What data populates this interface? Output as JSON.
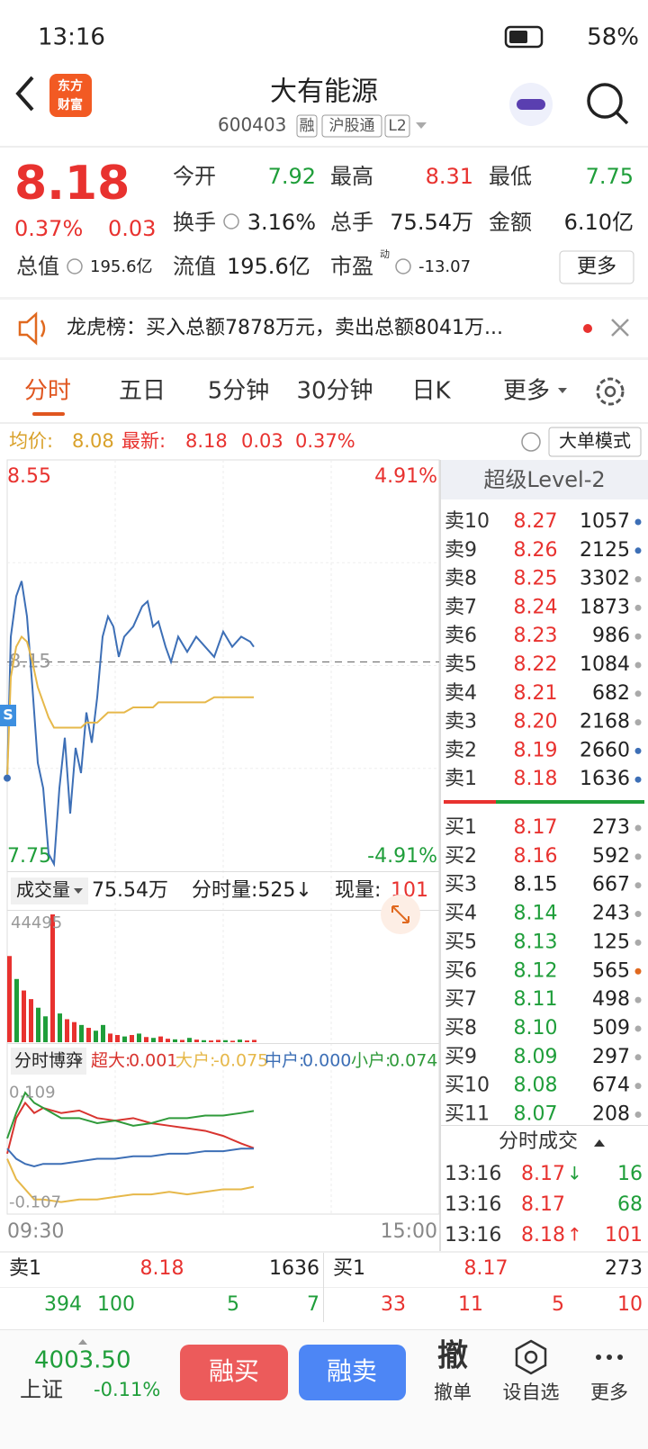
{
  "status_bar": {
    "time": "13:16",
    "battery": "58%"
  },
  "header": {
    "logo": [
      "东方",
      "财富"
    ],
    "title": "大有能源",
    "code": "600403",
    "tags": [
      "融",
      "沪股通",
      "L2"
    ]
  },
  "quote": {
    "price": "8.18",
    "change_pct": "0.37%",
    "change": "0.03",
    "stats": [
      {
        "label": "今开",
        "value": "7.92",
        "color": "#1f9e3a"
      },
      {
        "label": "最高",
        "value": "8.31",
        "color": "#e8322f"
      },
      {
        "label": "最低",
        "value": "7.75",
        "color": "#1f9e3a"
      },
      {
        "label": "换手",
        "value": "3.16%"
      },
      {
        "label": "总手",
        "value": "75.54万"
      },
      {
        "label": "金额",
        "value": "6.10亿"
      },
      {
        "label": "总值",
        "value": "195.6亿"
      },
      {
        "label": "流值",
        "value": "195.6亿"
      },
      {
        "label": "市盈",
        "value": "-13.07",
        "sup": "动"
      }
    ],
    "more": "更多"
  },
  "notice": "龙虎榜：买入总额7878万元，卖出总额8041万...",
  "tabs": [
    "分时",
    "五日",
    "5分钟",
    "30分钟",
    "日K",
    "更多"
  ],
  "info_bar": {
    "avg_label": "均价:",
    "avg": "8.08",
    "last_label": "最新:",
    "last": "8.18",
    "change": "0.03",
    "change_pct": "0.37%",
    "mode": "大单模式"
  },
  "price_chart": {
    "type": "line",
    "marker": "S",
    "x": [
      0,
      2,
      5,
      8,
      11,
      14,
      17,
      20,
      23,
      26,
      29,
      32,
      35,
      38,
      41,
      44,
      47,
      50,
      53,
      56,
      59,
      62,
      65,
      70,
      75,
      78,
      81,
      84,
      88,
      91,
      95,
      100,
      105,
      110,
      115,
      120,
      125,
      130,
      135,
      137
    ],
    "series": [
      {
        "color": "#3d6fb6",
        "values": [
          7.92,
          8.2,
          8.28,
          8.31,
          8.24,
          8.1,
          7.95,
          7.9,
          7.77,
          7.75,
          7.9,
          8.0,
          7.85,
          7.98,
          7.93,
          8.05,
          7.99,
          8.08,
          8.2,
          8.24,
          8.22,
          8.16,
          8.2,
          8.22,
          8.26,
          8.27,
          8.22,
          8.23,
          8.18,
          8.15,
          8.2,
          8.17,
          8.2,
          8.18,
          8.16,
          8.21,
          8.18,
          8.2,
          8.19,
          8.18
        ]
      },
      {
        "color": "#e6b84a",
        "values": [
          7.92,
          8.12,
          8.18,
          8.2,
          8.19,
          8.15,
          8.1,
          8.07,
          8.04,
          8.02,
          8.02,
          8.02,
          8.02,
          8.02,
          8.02,
          8.03,
          8.03,
          8.03,
          8.04,
          8.05,
          8.05,
          8.05,
          8.05,
          8.06,
          8.06,
          8.06,
          8.06,
          8.07,
          8.07,
          8.07,
          8.07,
          8.07,
          8.07,
          8.07,
          8.08,
          8.08,
          8.08,
          8.08,
          8.08,
          8.08
        ]
      }
    ],
    "xlim": [
      0,
      240
    ],
    "xticks": [
      {
        "value": 0,
        "label": "09:30"
      },
      {
        "value": 240,
        "label": "15:00"
      }
    ],
    "ylim": [
      7.75,
      8.55
    ],
    "yticks": [
      8.55,
      7.75
    ],
    "pct_labels": [
      "4.91%",
      "-4.91%"
    ],
    "ref": 8.15
  },
  "volume_chart": {
    "type": "bar",
    "label": "成交量",
    "total": "75.54万",
    "tick_volume": "分时量:525↓",
    "current_label": "现量:",
    "current": "101",
    "x": [
      0,
      4,
      8,
      12,
      16,
      20,
      24,
      28,
      32,
      36,
      40,
      44,
      48,
      52,
      56,
      60,
      64,
      68,
      72,
      76,
      80,
      84,
      88,
      92,
      96,
      100,
      104,
      108,
      112,
      116,
      120,
      124,
      128,
      132,
      136
    ],
    "values": [
      30000,
      22000,
      18000,
      15000,
      12000,
      9000,
      44495,
      10000,
      8000,
      7000,
      6000,
      5000,
      4000,
      6000,
      3000,
      2500,
      2000,
      2500,
      3000,
      1800,
      1500,
      2000,
      1200,
      1000,
      800,
      1500,
      900,
      700,
      600,
      800,
      700,
      500,
      900,
      600,
      800
    ],
    "colors": [
      "#e8322f",
      "#1f9e3a",
      "#e8322f",
      "#e8322f",
      "#1f9e3a",
      "#1f9e3a",
      "#e8322f",
      "#1f9e3a",
      "#e8322f",
      "#e8322f",
      "#1f9e3a",
      "#e8322f",
      "#1f9e3a",
      "#1f9e3a",
      "#e8322f",
      "#e8322f",
      "#1f9e3a",
      "#e8322f",
      "#1f9e3a",
      "#e8322f",
      "#1f9e3a",
      "#e8322f",
      "#e8322f",
      "#1f9e3a",
      "#e8322f",
      "#1f9e3a",
      "#e8322f",
      "#1f9e3a",
      "#e8322f",
      "#e8322f",
      "#1f9e3a",
      "#e8322f",
      "#1f9e3a",
      "#e8322f",
      "#e8322f"
    ],
    "ylim": [
      0,
      44495
    ],
    "yticks": [
      44495
    ]
  },
  "flow_chart": {
    "type": "line",
    "label": "分时博弈",
    "x": [
      0,
      5,
      10,
      15,
      20,
      30,
      40,
      50,
      60,
      70,
      80,
      90,
      100,
      110,
      120,
      130,
      137
    ],
    "series": [
      {
        "name": "超大:",
        "value_label": "0.001",
        "color": "#d8342f",
        "values": [
          -0.01,
          0.06,
          0.09,
          0.07,
          0.08,
          0.07,
          0.075,
          0.06,
          0.055,
          0.06,
          0.05,
          0.045,
          0.04,
          0.035,
          0.025,
          0.01,
          0.001
        ]
      },
      {
        "name": "大户:",
        "value_label": "-0.075",
        "color": "#e6b84a",
        "values": [
          -0.02,
          -0.06,
          -0.08,
          -0.1,
          -0.1,
          -0.105,
          -0.1,
          -0.1,
          -0.095,
          -0.09,
          -0.09,
          -0.085,
          -0.09,
          -0.085,
          -0.08,
          -0.08,
          -0.075
        ]
      },
      {
        "name": "中户:",
        "value_label": "0.000",
        "color": "#3d6fb6",
        "values": [
          0.0,
          -0.02,
          -0.03,
          -0.035,
          -0.03,
          -0.03,
          -0.025,
          -0.02,
          -0.02,
          -0.015,
          -0.015,
          -0.01,
          -0.01,
          -0.005,
          -0.005,
          0.0,
          0.0
        ]
      },
      {
        "name": "小户:",
        "value_label": "0.074",
        "color": "#2f9a3a",
        "values": [
          0.02,
          0.07,
          0.11,
          0.09,
          0.08,
          0.06,
          0.06,
          0.05,
          0.055,
          0.045,
          0.05,
          0.06,
          0.06,
          0.065,
          0.065,
          0.07,
          0.074
        ]
      }
    ],
    "ylim": [
      -0.127,
      0.142
    ],
    "yticks": [
      0.109,
      -0.107
    ]
  },
  "level2": {
    "title": "超级Level-2",
    "asks": [
      {
        "label": "卖10",
        "price": "8.27",
        "volume": "1057",
        "dot": "#3d6fb6"
      },
      {
        "label": "卖9",
        "price": "8.26",
        "volume": "2125",
        "dot": "#3d6fb6"
      },
      {
        "label": "卖8",
        "price": "8.25",
        "volume": "3302",
        "dot": "#aaaaaa"
      },
      {
        "label": "卖7",
        "price": "8.24",
        "volume": "1873",
        "dot": "#aaaaaa"
      },
      {
        "label": "卖6",
        "price": "8.23",
        "volume": "986",
        "dot": "#aaaaaa"
      },
      {
        "label": "卖5",
        "price": "8.22",
        "volume": "1084",
        "dot": "#aaaaaa"
      },
      {
        "label": "卖4",
        "price": "8.21",
        "volume": "682",
        "dot": "#aaaaaa"
      },
      {
        "label": "卖3",
        "price": "8.20",
        "volume": "2168",
        "dot": "#aaaaaa"
      },
      {
        "label": "卖2",
        "price": "8.19",
        "volume": "2660",
        "dot": "#3d6fb6"
      },
      {
        "label": "卖1",
        "price": "8.18",
        "volume": "1636",
        "dot": "#3d6fb6"
      }
    ],
    "bids": [
      {
        "label": "买1",
        "price": "8.17",
        "volume": "273",
        "dot": "#aaaaaa"
      },
      {
        "label": "买2",
        "price": "8.16",
        "volume": "592",
        "dot": "#aaaaaa"
      },
      {
        "label": "买3",
        "price": "8.15",
        "volume": "667",
        "dot": "#aaaaaa"
      },
      {
        "label": "买4",
        "price": "8.14",
        "volume": "243",
        "dot": "#aaaaaa"
      },
      {
        "label": "买5",
        "price": "8.13",
        "volume": "125",
        "dot": "#aaaaaa"
      },
      {
        "label": "买6",
        "price": "8.12",
        "volume": "565",
        "dot": "#e0691f"
      },
      {
        "label": "买7",
        "price": "8.11",
        "volume": "498",
        "dot": "#aaaaaa"
      },
      {
        "label": "买8",
        "price": "8.10",
        "volume": "509",
        "dot": "#aaaaaa"
      },
      {
        "label": "买9",
        "price": "8.09",
        "volume": "297",
        "dot": "#aaaaaa"
      },
      {
        "label": "买10",
        "price": "8.08",
        "volume": "674",
        "dot": "#aaaaaa"
      },
      {
        "label": "买11",
        "price": "8.07",
        "volume": "208",
        "dot": "#aaaaaa"
      }
    ],
    "trades_title": "分时成交",
    "trades": [
      {
        "time": "13:16",
        "price": "8.17",
        "arrow": "↓",
        "volume": "16",
        "color": "#1f9e3a"
      },
      {
        "time": "13:16",
        "price": "8.17",
        "volume": "68",
        "color": "#1f9e3a"
      },
      {
        "time": "13:16",
        "price": "8.18",
        "arrow": "↑",
        "volume": "101",
        "color": "#e8322f"
      }
    ]
  },
  "bottom_quote": {
    "ask": [
      "卖1",
      "8.18",
      "1636"
    ],
    "ask_detail": [
      "394",
      "100",
      "5",
      "7"
    ],
    "bid": [
      "买1",
      "8.17",
      "273"
    ],
    "bid_detail": [
      "33",
      "11",
      "5",
      "10"
    ]
  },
  "nav": {
    "index": "4003.50",
    "index_name": "上证",
    "index_change": "-0.11%",
    "buttons": [
      "融买",
      "融卖"
    ],
    "items": [
      {
        "icon": "撤",
        "label": "撤单"
      },
      {
        "label": "设自选"
      },
      {
        "label": "更多"
      }
    ]
  }
}
